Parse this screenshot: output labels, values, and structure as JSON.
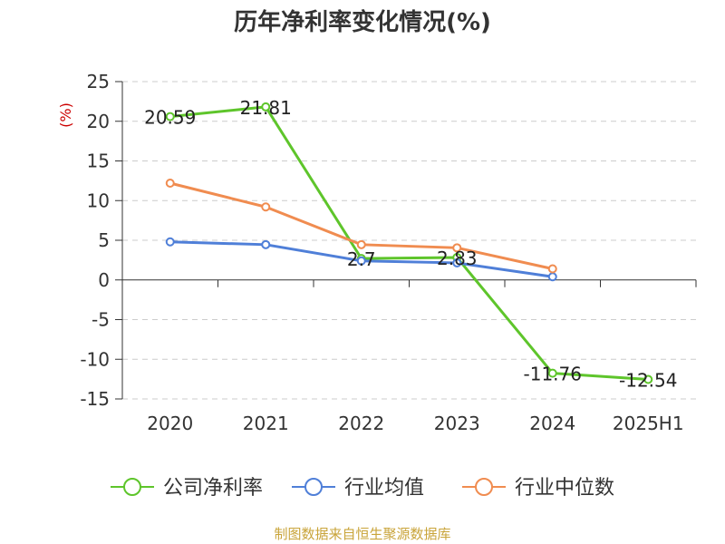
{
  "chart_data": {
    "type": "line",
    "title": "历年净利率变化情况(%)",
    "ylabel": "(%)",
    "ylim": [
      -15,
      25
    ],
    "yticks": [
      25,
      20,
      15,
      10,
      5,
      0,
      -5,
      -10,
      -15
    ],
    "categories": [
      "2020",
      "2021",
      "2022",
      "2023",
      "2024",
      "2025H1"
    ],
    "grid": true,
    "legend_position": "bottom",
    "series": [
      {
        "name": "公司净利率",
        "color": "#5ec52b",
        "values": [
          20.59,
          21.81,
          2.7,
          2.83,
          -11.76,
          -12.54
        ],
        "labels": [
          "20.59",
          "21.81",
          "2.7",
          "2.83",
          "-11.76",
          "-12.54"
        ]
      },
      {
        "name": "行业均值",
        "color": "#4f7fd8",
        "values": [
          4.8,
          4.45,
          2.4,
          2.15,
          0.4,
          null
        ]
      },
      {
        "name": "行业中位数",
        "color": "#f08c50",
        "values": [
          12.2,
          9.2,
          4.45,
          4.05,
          1.4,
          null
        ]
      }
    ],
    "source": "制图数据来自恒生聚源数据库",
    "colors": {
      "grid": "#cccccc",
      "axis": "#333333",
      "unit": "#cc0000",
      "source": "#c9a43a"
    }
  }
}
